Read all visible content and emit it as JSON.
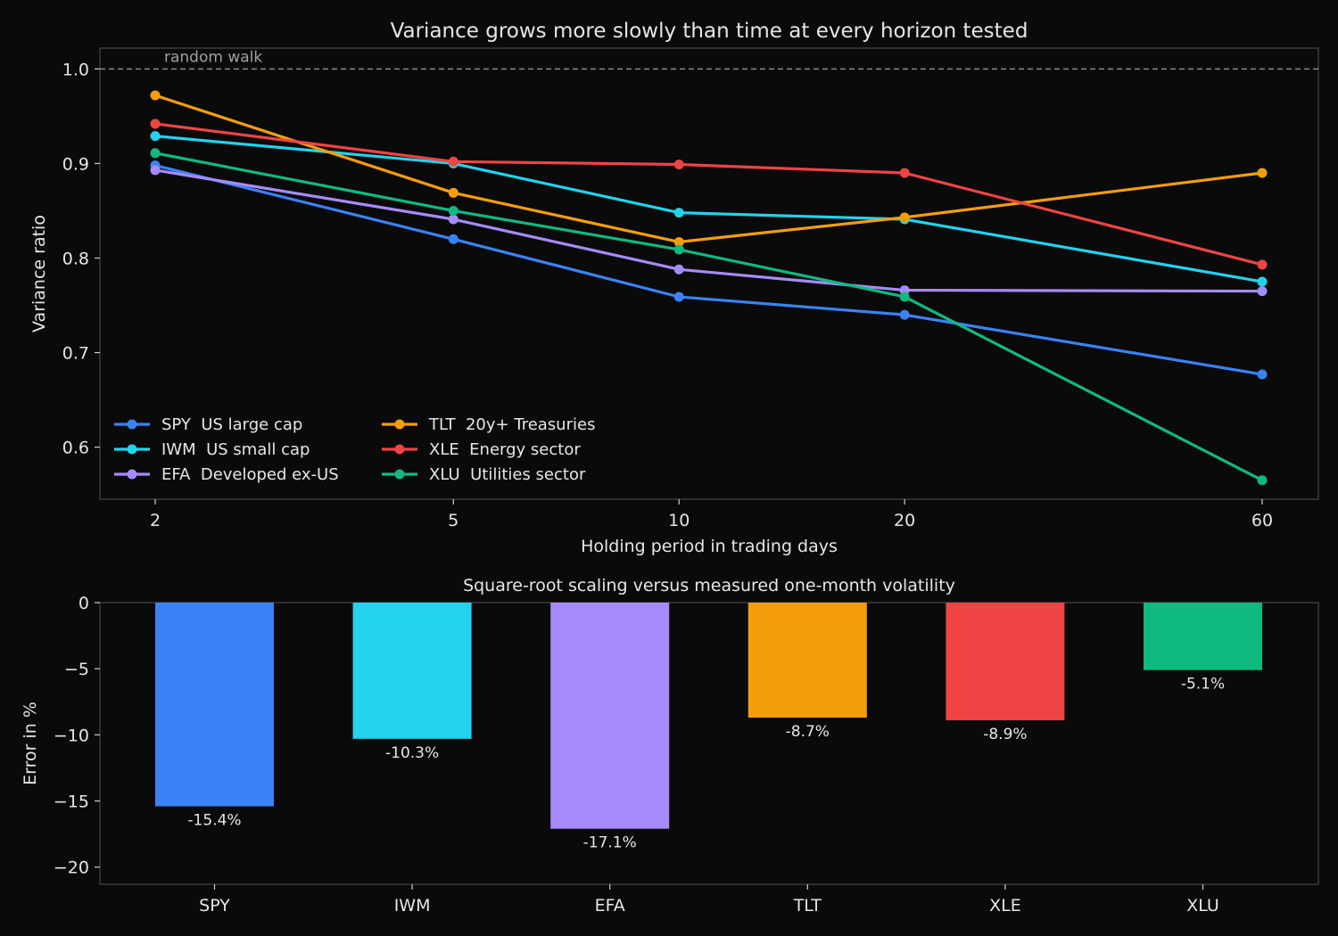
{
  "chart_data": [
    {
      "type": "line",
      "title": "Variance grows more slowly than time at every horizon tested",
      "xlabel": "Holding period in trading days",
      "ylabel": "Variance ratio",
      "x": [
        2,
        5,
        10,
        20,
        60
      ],
      "x_tick_labels": [
        "2",
        "5",
        "10",
        "20",
        "60"
      ],
      "x_scale": "log",
      "y_ticks": [
        0.6,
        0.7,
        0.8,
        0.9,
        1.0
      ],
      "y_tick_labels": [
        "0.6",
        "0.7",
        "0.8",
        "0.9",
        "1.0"
      ],
      "ylim": [
        0.545,
        1.022
      ],
      "grid": false,
      "legend_position": "lower-left",
      "reference_line": {
        "y": 1.0,
        "label": "random walk",
        "style": "dashed",
        "color": "#8a8a8a"
      },
      "series": [
        {
          "name": "SPY  US large cap",
          "color": "#3b82f6",
          "values": [
            0.898,
            0.82,
            0.759,
            0.74,
            0.677
          ]
        },
        {
          "name": "IWM  US small cap",
          "color": "#22d3ee",
          "values": [
            0.929,
            0.9,
            0.848,
            0.841,
            0.775
          ]
        },
        {
          "name": "EFA  Developed ex-US",
          "color": "#a78bfa",
          "values": [
            0.893,
            0.841,
            0.788,
            0.766,
            0.765
          ]
        },
        {
          "name": "TLT  20y+ Treasuries",
          "color": "#f59e0b",
          "values": [
            0.972,
            0.869,
            0.817,
            0.843,
            0.89
          ]
        },
        {
          "name": "XLE  Energy sector",
          "color": "#ef4444",
          "values": [
            0.942,
            0.902,
            0.899,
            0.89,
            0.793
          ]
        },
        {
          "name": "XLU  Utilities sector",
          "color": "#10b981",
          "values": [
            0.911,
            0.85,
            0.809,
            0.759,
            0.565
          ]
        }
      ]
    },
    {
      "type": "bar",
      "title": "Square-root scaling versus measured one-month volatility",
      "xlabel": "",
      "ylabel": "Error in %",
      "categories": [
        "SPY",
        "IWM",
        "EFA",
        "TLT",
        "XLE",
        "XLU"
      ],
      "values": [
        -15.4,
        -10.3,
        -17.1,
        -8.7,
        -8.9,
        -5.1
      ],
      "value_labels": [
        "-15.4%",
        "-10.3%",
        "-17.1%",
        "-8.7%",
        "-8.9%",
        "-5.1%"
      ],
      "colors": [
        "#3b82f6",
        "#22d3ee",
        "#a78bfa",
        "#f59e0b",
        "#ef4444",
        "#10b981"
      ],
      "y_ticks": [
        0,
        -5,
        -10,
        -15,
        -20
      ],
      "y_tick_labels": [
        "0",
        "−5",
        "−10",
        "−15",
        "−20"
      ],
      "ylim": [
        -21.3,
        0
      ],
      "grid": false
    }
  ]
}
